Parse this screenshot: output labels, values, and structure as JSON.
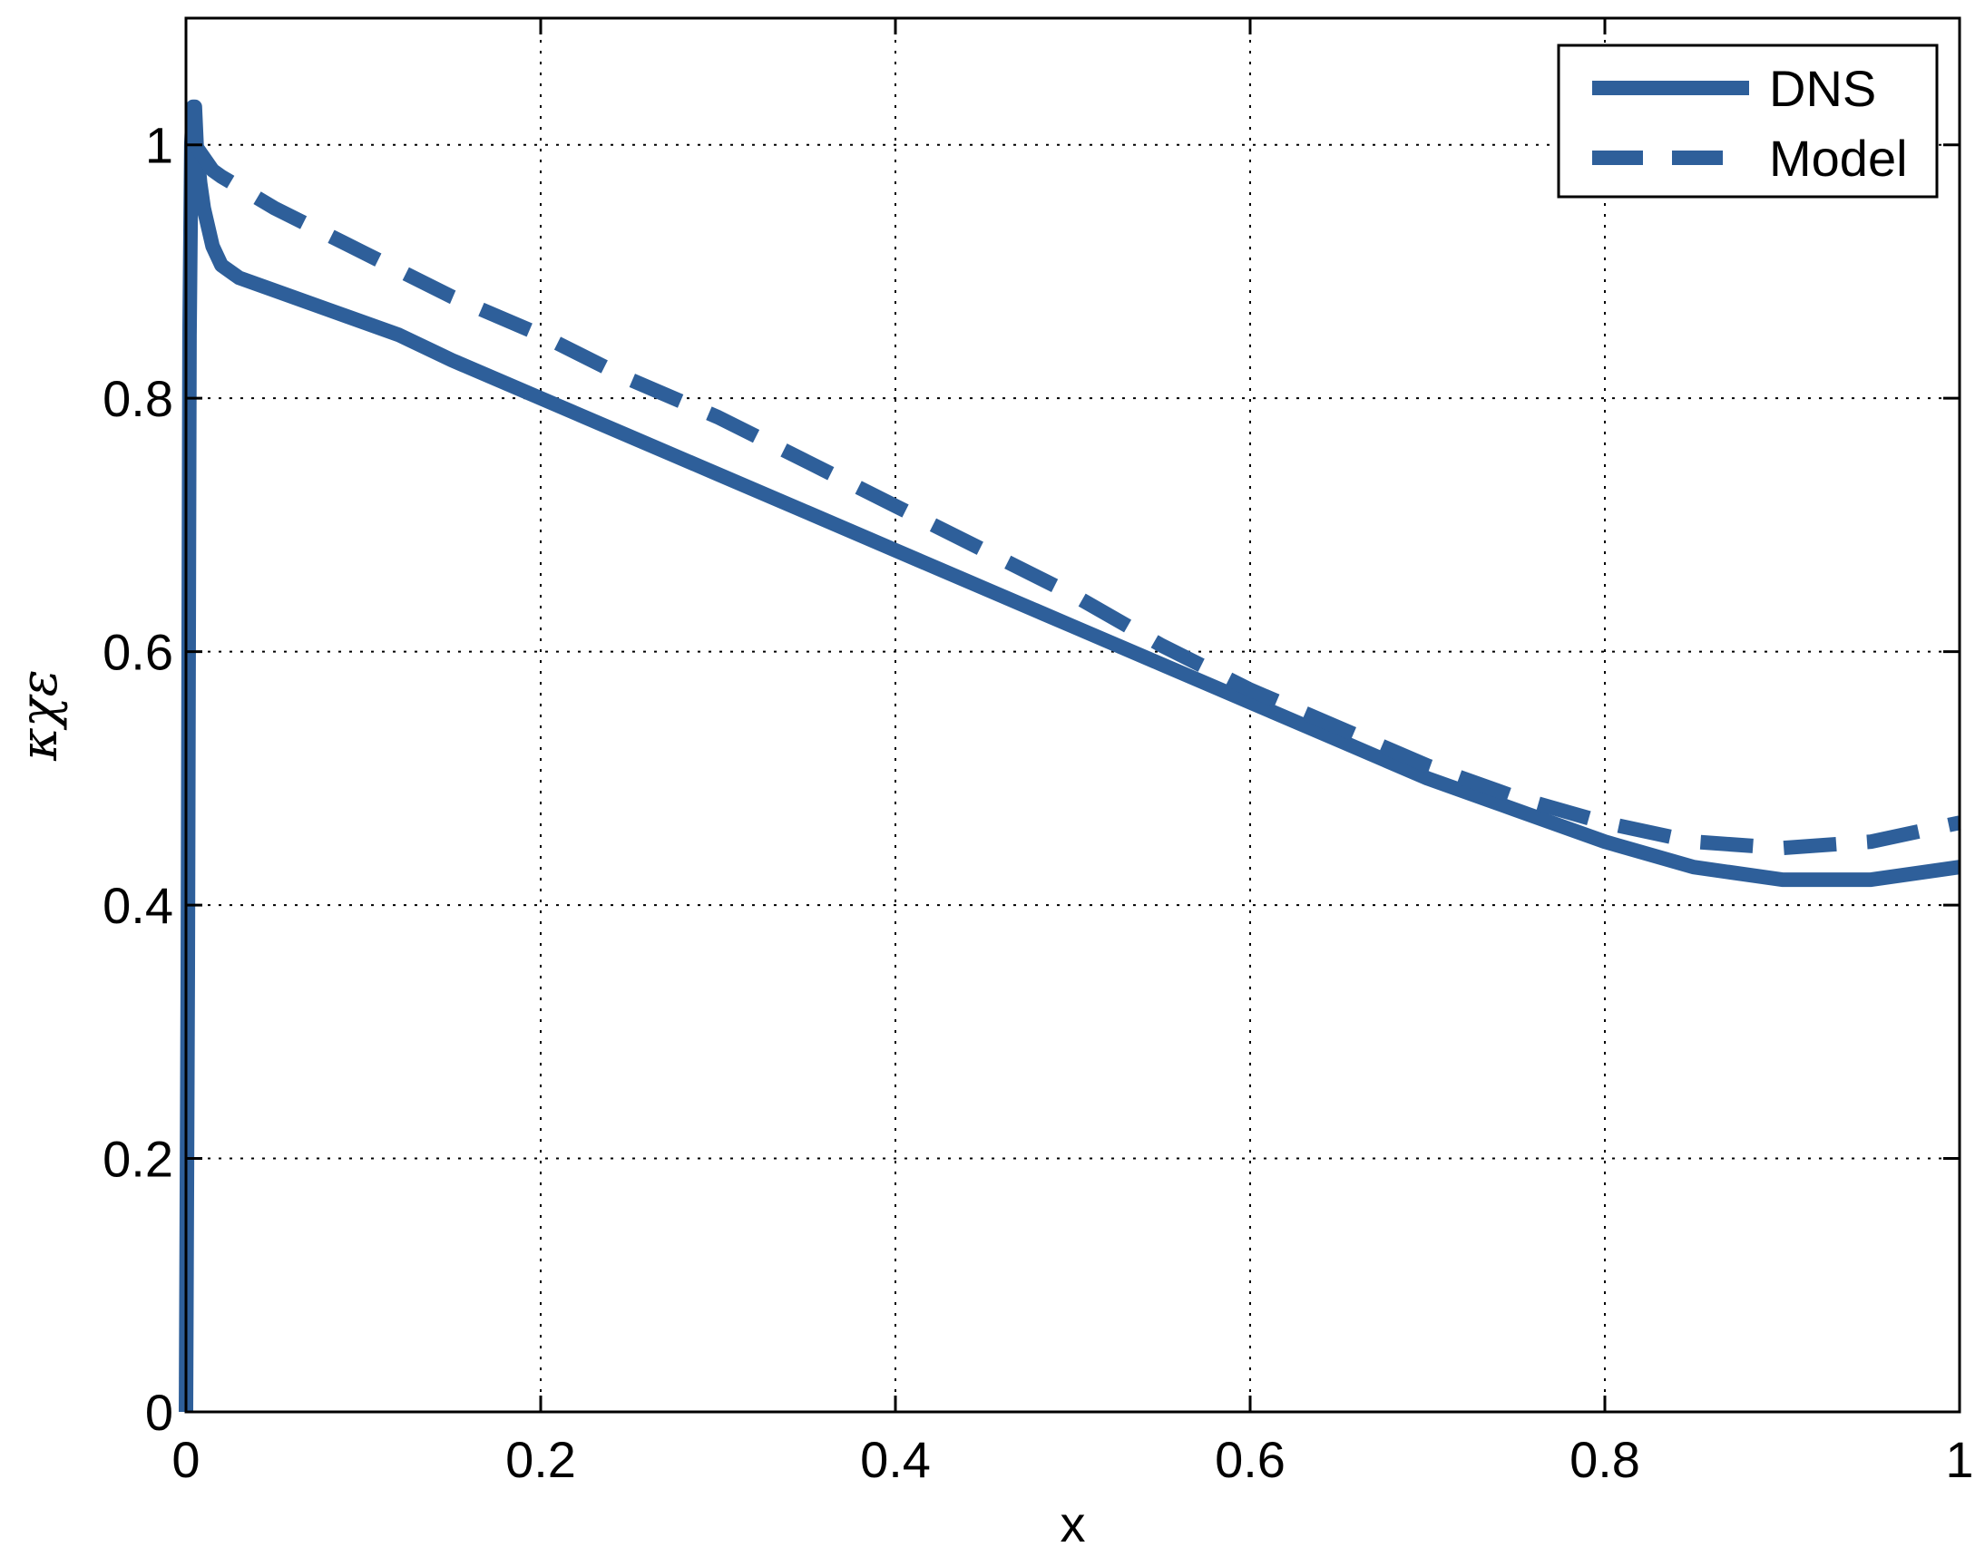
{
  "chart_data": {
    "type": "line",
    "title": "",
    "xlabel": "x",
    "ylabel": "κχε",
    "xlim": [
      0,
      1
    ],
    "ylim": [
      0,
      1.1
    ],
    "xticks": [
      0,
      0.2,
      0.4,
      0.6,
      0.8,
      1
    ],
    "xtick_labels": [
      "0",
      "0.2",
      "0.4",
      "0.6",
      "0.8",
      "1"
    ],
    "yticks": [
      0,
      0.2,
      0.4,
      0.6,
      0.8,
      1
    ],
    "ytick_labels": [
      "0",
      "0.2",
      "0.4",
      "0.6",
      "0.8",
      "1"
    ],
    "grid": true,
    "legend_position": "top-right",
    "series_color": "#2e5f9a",
    "series": [
      {
        "name": "DNS",
        "style": "solid",
        "x": [
          0,
          0.001,
          0.002,
          0.003,
          0.004,
          0.005,
          0.006,
          0.008,
          0.01,
          0.015,
          0.02,
          0.03,
          0.05,
          0.08,
          0.12,
          0.15,
          0.2,
          0.25,
          0.3,
          0.35,
          0.4,
          0.45,
          0.5,
          0.55,
          0.6,
          0.65,
          0.7,
          0.75,
          0.8,
          0.85,
          0.9,
          0.95,
          1.0
        ],
        "y": [
          0,
          0.35,
          0.85,
          1.0,
          1.03,
          1.03,
          1.0,
          0.97,
          0.95,
          0.92,
          0.905,
          0.895,
          0.885,
          0.87,
          0.85,
          0.83,
          0.8,
          0.77,
          0.74,
          0.71,
          0.68,
          0.65,
          0.62,
          0.59,
          0.56,
          0.53,
          0.5,
          0.475,
          0.45,
          0.43,
          0.42,
          0.42,
          0.43
        ]
      },
      {
        "name": "Model",
        "style": "dashed",
        "x": [
          0.005,
          0.01,
          0.015,
          0.02,
          0.05,
          0.1,
          0.15,
          0.2,
          0.25,
          0.3,
          0.35,
          0.4,
          0.45,
          0.5,
          0.55,
          0.6,
          0.65,
          0.7,
          0.75,
          0.8,
          0.85,
          0.9,
          0.95,
          1.0
        ],
        "y": [
          1.0,
          0.99,
          0.98,
          0.975,
          0.95,
          0.915,
          0.88,
          0.85,
          0.815,
          0.785,
          0.75,
          0.715,
          0.68,
          0.645,
          0.605,
          0.57,
          0.54,
          0.51,
          0.485,
          0.465,
          0.45,
          0.445,
          0.45,
          0.465
        ]
      }
    ]
  }
}
